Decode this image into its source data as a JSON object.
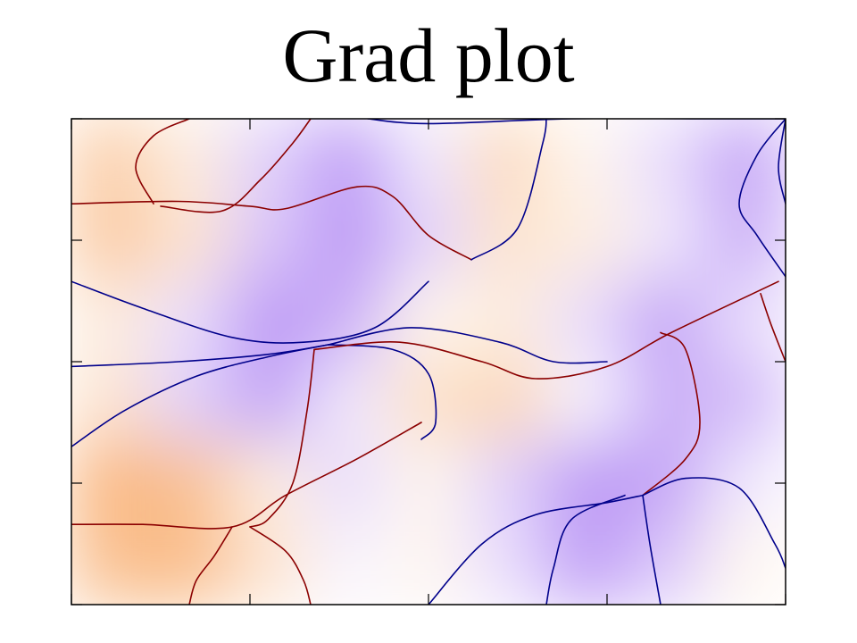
{
  "chart_data": {
    "type": "heatmap",
    "title": "Grad plot",
    "xlim": [
      0,
      2
    ],
    "ylim": [
      -1,
      1
    ],
    "ticks": {
      "x": [
        0,
        0.5,
        1,
        1.5,
        2
      ],
      "y": [
        -1,
        -0.5,
        0,
        0.5,
        1
      ]
    },
    "field": {
      "colormap": [
        "#f7a560",
        "#ffffff",
        "#b48cf4"
      ],
      "description_rows": [
        [
          0.55,
          0.2,
          -0.4,
          -0.85,
          -0.2,
          0.4,
          0.1,
          -0.3,
          -0.8
        ],
        [
          0.6,
          0.3,
          -0.5,
          -0.9,
          -0.4,
          0.3,
          0.2,
          -0.2,
          -0.7
        ],
        [
          0.2,
          -0.3,
          -0.9,
          -0.7,
          0.1,
          0.2,
          -0.3,
          -0.8,
          -0.3
        ],
        [
          0.3,
          -0.4,
          -0.8,
          -0.2,
          0.35,
          0.45,
          -0.1,
          -0.7,
          -0.6
        ],
        [
          0.8,
          0.7,
          0.2,
          -0.3,
          0.1,
          -0.4,
          -0.9,
          -0.8,
          -0.2
        ],
        [
          0.7,
          0.75,
          0.3,
          -0.1,
          0.1,
          -0.3,
          -0.85,
          -0.5,
          0.1
        ]
      ]
    },
    "lines": [
      {
        "color": "#8b0000",
        "points": [
          [
            0,
            0.65
          ],
          [
            0.3,
            0.66
          ],
          [
            0.5,
            0.64
          ],
          [
            0.6,
            0.63
          ],
          [
            0.8,
            0.72
          ],
          [
            0.9,
            0.68
          ],
          [
            1.0,
            0.52
          ],
          [
            1.12,
            0.42
          ]
        ]
      },
      {
        "color": "#8b0000",
        "points": [
          [
            0.25,
            0.64
          ],
          [
            0.42,
            0.62
          ],
          [
            0.53,
            0.75
          ],
          [
            0.62,
            0.9
          ],
          [
            0.67,
            1.0
          ]
        ]
      },
      {
        "color": "#8b0000",
        "points": [
          [
            0.23,
            0.65
          ],
          [
            0.18,
            0.8
          ],
          [
            0.23,
            0.93
          ],
          [
            0.33,
            1.0
          ]
        ]
      },
      {
        "color": "#00008b",
        "points": [
          [
            1.12,
            0.42
          ],
          [
            1.25,
            0.55
          ],
          [
            1.32,
            0.9
          ],
          [
            1.33,
            1.0
          ]
        ]
      },
      {
        "color": "#00008b",
        "points": [
          [
            0.83,
            1.0
          ],
          [
            1.0,
            0.98
          ],
          [
            1.4,
            1.0
          ],
          [
            1.8,
            1.0
          ],
          [
            2.0,
            1.0
          ]
        ]
      },
      {
        "color": "#00008b",
        "points": [
          [
            2.0,
            1.0
          ],
          [
            1.92,
            0.85
          ],
          [
            1.87,
            0.65
          ],
          [
            1.92,
            0.52
          ],
          [
            2.0,
            0.35
          ]
        ]
      },
      {
        "color": "#00008b",
        "points": [
          [
            2.0,
            1.0
          ],
          [
            1.98,
            0.8
          ],
          [
            2.0,
            0.65
          ]
        ]
      },
      {
        "color": "#00008b",
        "points": [
          [
            0,
            0.33
          ],
          [
            0.2,
            0.22
          ],
          [
            0.45,
            0.1
          ],
          [
            0.65,
            0.08
          ],
          [
            0.85,
            0.14
          ],
          [
            1.0,
            0.33
          ]
        ]
      },
      {
        "color": "#00008b",
        "points": [
          [
            0,
            -0.35
          ],
          [
            0.15,
            -0.2
          ],
          [
            0.35,
            -0.06
          ],
          [
            0.55,
            0.02
          ],
          [
            0.72,
            0.07
          ]
        ]
      },
      {
        "color": "#00008b",
        "points": [
          [
            0,
            -0.02
          ],
          [
            0.3,
            0.0
          ],
          [
            0.55,
            0.03
          ],
          [
            0.72,
            0.07
          ]
        ]
      },
      {
        "color": "#00008b",
        "points": [
          [
            0.72,
            0.07
          ],
          [
            0.9,
            0.05
          ],
          [
            1.0,
            -0.05
          ],
          [
            1.02,
            -0.25
          ],
          [
            0.98,
            -0.32
          ]
        ]
      },
      {
        "color": "#00008b",
        "points": [
          [
            0.72,
            0.07
          ],
          [
            0.95,
            0.14
          ],
          [
            1.2,
            0.08
          ],
          [
            1.35,
            0.0
          ],
          [
            1.5,
            0.0
          ]
        ]
      },
      {
        "color": "#8b0000",
        "points": [
          [
            0.68,
            0.05
          ],
          [
            0.92,
            0.08
          ],
          [
            1.15,
            0.0
          ],
          [
            1.3,
            -0.07
          ],
          [
            1.5,
            -0.02
          ],
          [
            1.68,
            0.12
          ],
          [
            1.98,
            0.33
          ]
        ]
      },
      {
        "color": "#8b0000",
        "points": [
          [
            0.68,
            0.05
          ],
          [
            0.66,
            -0.2
          ],
          [
            0.62,
            -0.5
          ],
          [
            0.55,
            -0.65
          ],
          [
            0.5,
            -0.68
          ]
        ]
      },
      {
        "color": "#8b0000",
        "points": [
          [
            1.93,
            0.28
          ],
          [
            1.96,
            0.15
          ],
          [
            2.0,
            0.0
          ]
        ]
      },
      {
        "color": "#8b0000",
        "points": [
          [
            1.65,
            0.12
          ],
          [
            1.72,
            0.05
          ],
          [
            1.76,
            -0.25
          ],
          [
            1.72,
            -0.4
          ],
          [
            1.6,
            -0.55
          ]
        ]
      },
      {
        "color": "#00008b",
        "points": [
          [
            1.0,
            -1.0
          ],
          [
            1.15,
            -0.75
          ],
          [
            1.3,
            -0.63
          ],
          [
            1.5,
            -0.58
          ],
          [
            1.6,
            -0.55
          ]
        ]
      },
      {
        "color": "#00008b",
        "points": [
          [
            1.6,
            -0.55
          ],
          [
            1.72,
            -0.48
          ],
          [
            1.87,
            -0.52
          ],
          [
            1.97,
            -0.75
          ],
          [
            2.0,
            -0.85
          ]
        ]
      },
      {
        "color": "#00008b",
        "points": [
          [
            1.6,
            -0.55
          ],
          [
            1.62,
            -0.75
          ],
          [
            1.65,
            -1.0
          ]
        ]
      },
      {
        "color": "#00008b",
        "points": [
          [
            1.55,
            -0.55
          ],
          [
            1.4,
            -0.65
          ],
          [
            1.35,
            -0.85
          ],
          [
            1.33,
            -1.0
          ]
        ]
      },
      {
        "color": "#8b0000",
        "points": [
          [
            0,
            -0.67
          ],
          [
            0.2,
            -0.67
          ],
          [
            0.45,
            -0.68
          ],
          [
            0.6,
            -0.55
          ],
          [
            0.8,
            -0.4
          ],
          [
            0.98,
            -0.25
          ]
        ]
      },
      {
        "color": "#8b0000",
        "points": [
          [
            0.45,
            -0.68
          ],
          [
            0.4,
            -0.8
          ],
          [
            0.35,
            -0.9
          ],
          [
            0.33,
            -1.0
          ]
        ]
      },
      {
        "color": "#8b0000",
        "points": [
          [
            0.5,
            -0.68
          ],
          [
            0.6,
            -0.78
          ],
          [
            0.65,
            -0.9
          ],
          [
            0.67,
            -1.0
          ]
        ]
      }
    ]
  }
}
